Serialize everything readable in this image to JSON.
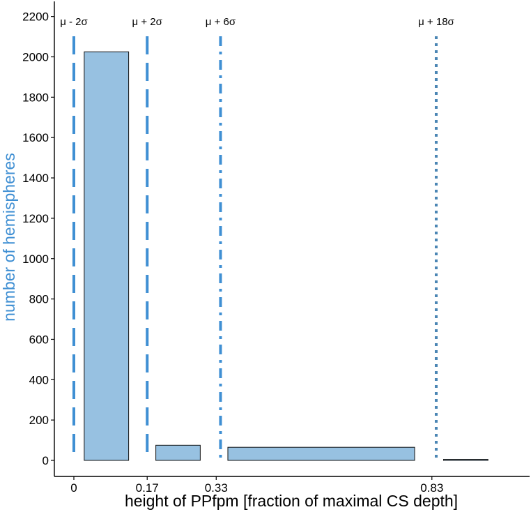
{
  "chart_data": {
    "type": "bar",
    "title": "",
    "xlabel": "height of PPfpm [fraction of maximal CS depth]",
    "ylabel": "number of hemispheres",
    "ylim": [
      -80,
      2300
    ],
    "yticks": [
      0,
      200,
      400,
      600,
      800,
      1000,
      1200,
      1400,
      1600,
      1800,
      2000,
      2200
    ],
    "xticks": [
      {
        "value": 0.0,
        "label": "0"
      },
      {
        "value": 0.17,
        "label": "0.17"
      },
      {
        "value": 0.33,
        "label": "0.33"
      },
      {
        "value": 0.83,
        "label": "0.83"
      }
    ],
    "bins": [
      {
        "x0": 0.024,
        "x1": 0.127,
        "count": 2025
      },
      {
        "x0": 0.19,
        "x1": 0.293,
        "count": 75
      },
      {
        "x0": 0.357,
        "x1": 0.79,
        "count": 65
      },
      {
        "x0": 0.857,
        "x1": 0.96,
        "count": 5
      }
    ],
    "reference_lines": [
      {
        "label": "μ - 2σ",
        "x": 0.0,
        "style": "dashed"
      },
      {
        "label": "μ + 2σ",
        "x": 0.17,
        "style": "dashed"
      },
      {
        "label": "μ + 6σ",
        "x": 0.34,
        "style": "dashdot"
      },
      {
        "label": "μ + 18σ",
        "x": 0.84,
        "style": "dotted"
      }
    ],
    "grid": false
  },
  "colors": {
    "bar_fill": "#97c1e1",
    "bar_stroke": "#111111",
    "ref_line": "#3f8fd3",
    "ref_line_dotted": "#4b86b4",
    "ylabel": "#3f8fd3",
    "xlabel": "#000000",
    "axis": "#000000"
  }
}
